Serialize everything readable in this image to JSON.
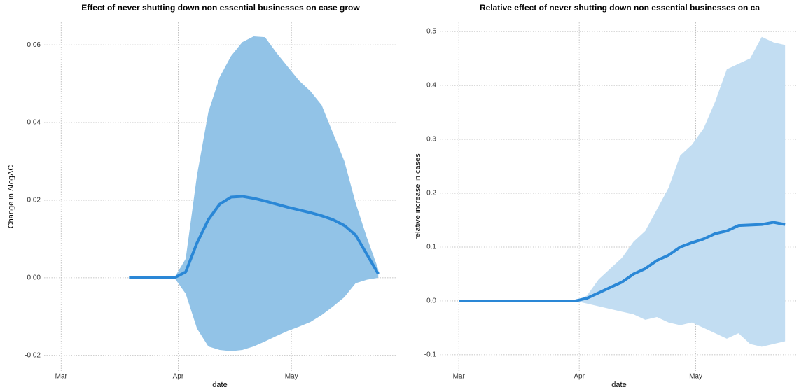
{
  "chart_data": [
    {
      "type": "band-line",
      "title": "Effect of never shutting down non essential businesses on case grow",
      "x_label": "date",
      "y_label": "Change in ΔlogΔC",
      "xlim": [
        -4.5,
        88.6
      ],
      "ylim": [
        -0.024,
        0.0658
      ],
      "xticks": [
        {
          "value": 0,
          "label": "Mar"
        },
        {
          "value": 31,
          "label": "Apr"
        },
        {
          "value": 61,
          "label": "May"
        }
      ],
      "yticks": [
        -0.02,
        {
          "value": 0,
          "label": "0.00"
        },
        0.02,
        0.04,
        0.06
      ],
      "grid": true,
      "band": {
        "color": "#92c3e7",
        "x": [
          30,
          33,
          36,
          39,
          42,
          45,
          48,
          51,
          54,
          57,
          60,
          63,
          66,
          69,
          72,
          75,
          78,
          81,
          84
        ],
        "upper": [
          0,
          0.0049,
          0.0265,
          0.0427,
          0.0517,
          0.0571,
          0.0607,
          0.0622,
          0.062,
          0.058,
          0.0544,
          0.0508,
          0.0481,
          0.0445,
          0.0373,
          0.0301,
          0.0193,
          0.0103,
          0.0022
        ],
        "lower": [
          0,
          -0.0041,
          -0.0131,
          -0.0177,
          -0.0186,
          -0.0189,
          -0.0186,
          -0.0177,
          -0.0164,
          -0.015,
          -0.0137,
          -0.0126,
          -0.0114,
          -0.0096,
          -0.0074,
          -0.005,
          -0.0014,
          -0.0005,
          0
        ]
      },
      "line": {
        "color": "#2a87d6",
        "x": [
          18,
          21,
          24,
          27,
          30,
          33,
          36,
          39,
          42,
          45,
          48,
          51,
          54,
          57,
          60,
          63,
          66,
          69,
          72,
          75,
          78,
          81,
          84
        ],
        "values": [
          0,
          0,
          0,
          0,
          0,
          0.0015,
          0.009,
          0.015,
          0.019,
          0.0208,
          0.021,
          0.0205,
          0.0198,
          0.019,
          0.0182,
          0.0175,
          0.0168,
          0.016,
          0.015,
          0.0135,
          0.011,
          0.006,
          0.001
        ]
      }
    },
    {
      "type": "band-line",
      "title": "Relative effect of never shutting down non essential businesses on ca",
      "x_label": "date",
      "y_label": "relative increase in cases",
      "xlim": [
        -4.9,
        87.4
      ],
      "ylim": [
        -0.13,
        0.517
      ],
      "xticks": [
        {
          "value": 0,
          "label": "Mar"
        },
        {
          "value": 31,
          "label": "Apr"
        },
        {
          "value": 61,
          "label": "May"
        }
      ],
      "yticks": [
        -0.1,
        {
          "value": 0,
          "label": "0.0"
        },
        0.1,
        0.2,
        0.3,
        0.4,
        0.5
      ],
      "grid": true,
      "band": {
        "color": "#c2ddf2",
        "x": [
          30,
          33,
          36,
          39,
          42,
          45,
          48,
          51,
          54,
          57,
          60,
          63,
          66,
          69,
          72,
          75,
          78,
          81,
          84
        ],
        "upper": [
          0,
          0.01,
          0.04,
          0.06,
          0.08,
          0.11,
          0.13,
          0.17,
          0.21,
          0.27,
          0.29,
          0.32,
          0.37,
          0.43,
          0.44,
          0.45,
          0.49,
          0.48,
          0.475
        ],
        "lower": [
          0,
          -0.005,
          -0.01,
          -0.015,
          -0.02,
          -0.025,
          -0.035,
          -0.03,
          -0.04,
          -0.045,
          -0.04,
          -0.05,
          -0.06,
          -0.07,
          -0.06,
          -0.08,
          -0.085,
          -0.08,
          -0.075
        ]
      },
      "line": {
        "color": "#2a87d6",
        "x": [
          0,
          3,
          6,
          9,
          12,
          15,
          18,
          21,
          24,
          27,
          30,
          33,
          36,
          39,
          42,
          45,
          48,
          51,
          54,
          57,
          60,
          63,
          66,
          69,
          72,
          75,
          78,
          81,
          84
        ],
        "values": [
          0,
          0,
          0,
          0,
          0,
          0,
          0,
          0,
          0,
          0,
          0,
          0.005,
          0.015,
          0.025,
          0.035,
          0.05,
          0.06,
          0.075,
          0.085,
          0.1,
          0.108,
          0.115,
          0.125,
          0.13,
          0.14,
          0.141,
          0.142,
          0.146,
          0.142
        ]
      }
    }
  ]
}
